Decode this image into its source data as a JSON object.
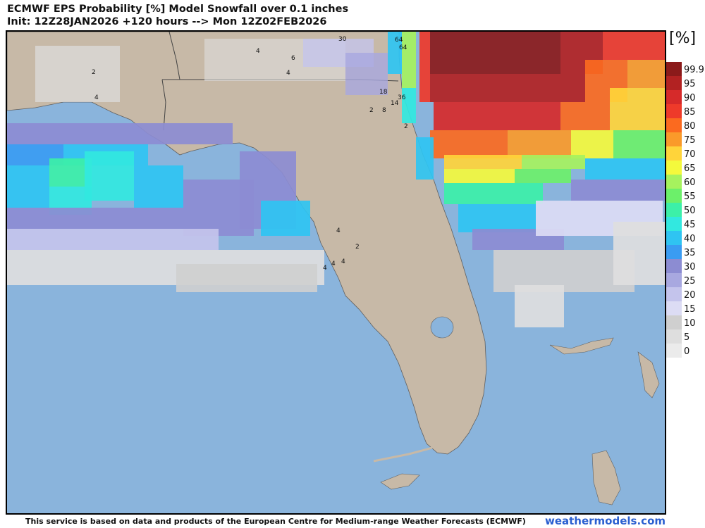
{
  "title": {
    "line1": "ECMWF EPS Probability [%] Model Snowfall over 0.1 inches",
    "line2": "Init: 12Z28JAN2026 +120 hours --> Mon 12Z02FEB2026"
  },
  "legend": {
    "unit": "[%]",
    "levels": [
      {
        "label": "99.9",
        "color": "#8b1a1a"
      },
      {
        "label": "95",
        "color": "#b22222"
      },
      {
        "label": "90",
        "color": "#d62a2a"
      },
      {
        "label": "85",
        "color": "#ee3a2a"
      },
      {
        "label": "80",
        "color": "#fb6a1f"
      },
      {
        "label": "75",
        "color": "#fa9a2a"
      },
      {
        "label": "70",
        "color": "#ffd43a"
      },
      {
        "label": "65",
        "color": "#f4f93c"
      },
      {
        "label": "60",
        "color": "#a6f25e"
      },
      {
        "label": "55",
        "color": "#6cf06a"
      },
      {
        "label": "50",
        "color": "#3cf0a8"
      },
      {
        "label": "45",
        "color": "#32e8e0"
      },
      {
        "label": "40",
        "color": "#2fc4f2"
      },
      {
        "label": "35",
        "color": "#3a9cf2"
      },
      {
        "label": "30",
        "color": "#8c8cd2"
      },
      {
        "label": "25",
        "color": "#a8a8e0"
      },
      {
        "label": "20",
        "color": "#c4c4ec"
      },
      {
        "label": "15",
        "color": "#dcdcf4"
      },
      {
        "label": "10",
        "color": "#cfcfcf"
      },
      {
        "label": "5",
        "color": "#dedede"
      },
      {
        "label": "0",
        "color": "#ebebeb"
      }
    ]
  },
  "colors": {
    "ocean": "#8ab4dc",
    "land": "#c7b9a7",
    "border": "#5f5f5f"
  },
  "point_labels": [
    "30",
    "64",
    "64",
    "2",
    "4",
    "6",
    "4",
    "4",
    "18",
    "36",
    "14",
    "2",
    "8",
    "2",
    "4",
    "2",
    "4",
    "4",
    "4"
  ],
  "footer": {
    "attribution": "This service is based on data and products of the European Centre for Medium-range Weather Forecasts (ECMWF)",
    "brand": "weathermodels.com"
  }
}
